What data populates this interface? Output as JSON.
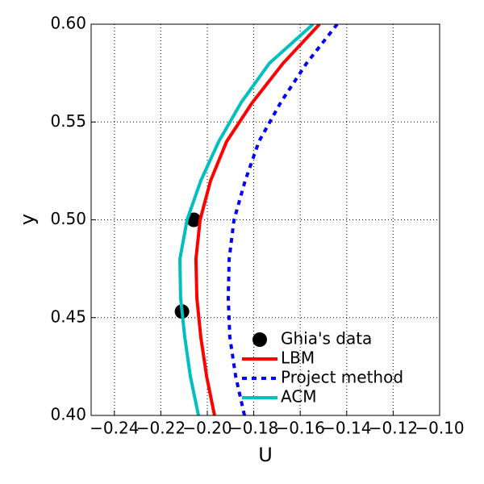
{
  "chart_data": {
    "type": "line",
    "xlabel": "U",
    "ylabel": "y",
    "xlim": [
      -0.25,
      -0.1
    ],
    "xticks": [
      {
        "value": -0.24,
        "label": "−0.24"
      },
      {
        "value": -0.22,
        "label": "−0.22"
      },
      {
        "value": -0.2,
        "label": "−0.20"
      },
      {
        "value": -0.18,
        "label": "−0.18"
      },
      {
        "value": -0.16,
        "label": "−0.16"
      },
      {
        "value": -0.14,
        "label": "−0.14"
      },
      {
        "value": -0.12,
        "label": "−0.12"
      },
      {
        "value": -0.1,
        "label": "−0.10"
      }
    ],
    "ylim": [
      0.4,
      0.6
    ],
    "yticks": [
      {
        "value": 0.4,
        "label": "0.40"
      },
      0.45,
      {
        "value": 0.5,
        "label": "0.50"
      },
      0.55,
      {
        "value": 0.6,
        "label": "0.60"
      }
    ],
    "grid": true,
    "legend": "lower right",
    "series": [
      {
        "name": "Ghia's data",
        "color": "#000000",
        "style": "scatter",
        "x": [
          -0.2109,
          -0.20581
        ],
        "y": [
          0.4531,
          0.5
        ]
      },
      {
        "name": "LBM",
        "color": "#ff0000",
        "style": "solid",
        "x": [
          -0.1969,
          -0.2003,
          -0.2028,
          -0.2045,
          -0.2049,
          -0.2031,
          -0.1986,
          -0.1917,
          -0.1806,
          -0.1674,
          -0.1517
        ],
        "y": [
          0.4,
          0.42,
          0.44,
          0.46,
          0.48,
          0.5,
          0.52,
          0.54,
          0.56,
          0.58,
          0.6
        ]
      },
      {
        "name": "Project method",
        "color": "#0000ff",
        "style": "dashed",
        "x": [
          -0.184,
          -0.1878,
          -0.1903,
          -0.191,
          -0.1906,
          -0.1885,
          -0.1837,
          -0.1778,
          -0.1684,
          -0.1573,
          -0.1441
        ],
        "y": [
          0.4,
          0.42,
          0.44,
          0.46,
          0.48,
          0.5,
          0.52,
          0.54,
          0.56,
          0.58,
          0.6
        ]
      },
      {
        "name": "ACM",
        "color": "#00bfbf",
        "style": "solid",
        "x": [
          -0.2038,
          -0.2073,
          -0.2097,
          -0.2115,
          -0.2118,
          -0.2087,
          -0.2028,
          -0.1951,
          -0.1854,
          -0.1733,
          -0.1545
        ],
        "y": [
          0.4,
          0.42,
          0.44,
          0.46,
          0.48,
          0.5,
          0.52,
          0.54,
          0.56,
          0.58,
          0.6
        ]
      }
    ]
  }
}
